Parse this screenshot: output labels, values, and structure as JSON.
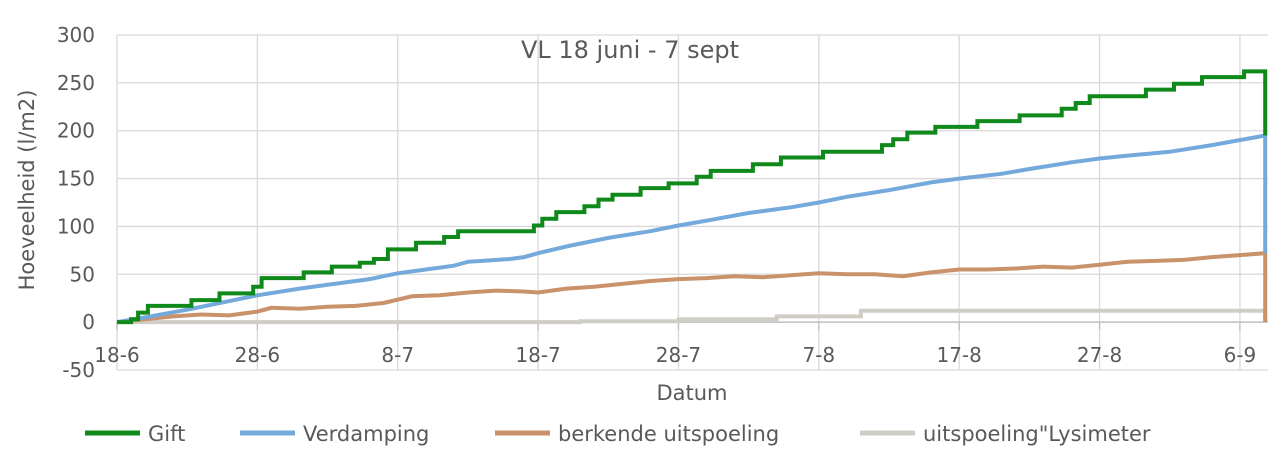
{
  "chart_data": {
    "type": "line",
    "title": "VL 18 juni - 7 sept",
    "xlabel": "Datum",
    "ylabel": "Hoeveelheid (l/m2)",
    "ylim": [
      -50,
      300
    ],
    "yticks": [
      -50,
      0,
      50,
      100,
      150,
      200,
      250,
      300
    ],
    "xlim_days": [
      0,
      82
    ],
    "xticks": [
      {
        "label": "18-6",
        "day": 0
      },
      {
        "label": "28-6",
        "day": 10
      },
      {
        "label": "8-7",
        "day": 20
      },
      {
        "label": "18-7",
        "day": 30
      },
      {
        "label": "28-7",
        "day": 40
      },
      {
        "label": "7-8",
        "day": 50
      },
      {
        "label": "17-8",
        "day": 60
      },
      {
        "label": "27-8",
        "day": 70
      },
      {
        "label": "6-9",
        "day": 80
      }
    ],
    "grid": true,
    "legend_position": "bottom",
    "series": [
      {
        "name": "Gift",
        "color": "#0f8a1a",
        "step": true,
        "points": [
          [
            0,
            0
          ],
          [
            1,
            3
          ],
          [
            1.5,
            10
          ],
          [
            2.2,
            17
          ],
          [
            5.3,
            23
          ],
          [
            7.3,
            30
          ],
          [
            9.7,
            37
          ],
          [
            10.3,
            46
          ],
          [
            13.3,
            52
          ],
          [
            15.3,
            58
          ],
          [
            17.3,
            62
          ],
          [
            18.3,
            66
          ],
          [
            19.3,
            76
          ],
          [
            21.3,
            83
          ],
          [
            23.3,
            89
          ],
          [
            24.3,
            95
          ],
          [
            29.7,
            101
          ],
          [
            30.3,
            108
          ],
          [
            31.3,
            115
          ],
          [
            33.3,
            121
          ],
          [
            34.3,
            128
          ],
          [
            35.3,
            133
          ],
          [
            37.3,
            140
          ],
          [
            39.3,
            145
          ],
          [
            41.3,
            152
          ],
          [
            42.3,
            158
          ],
          [
            45.3,
            165
          ],
          [
            47.3,
            172
          ],
          [
            50.3,
            178
          ],
          [
            54.5,
            185
          ],
          [
            55.3,
            191
          ],
          [
            56.3,
            198
          ],
          [
            58.3,
            204
          ],
          [
            61.3,
            210
          ],
          [
            64.3,
            216
          ],
          [
            67.3,
            223
          ],
          [
            68.3,
            229
          ],
          [
            69.3,
            236
          ],
          [
            73.3,
            243
          ],
          [
            75.3,
            249
          ],
          [
            77.3,
            256
          ],
          [
            80.3,
            262
          ],
          [
            81.8,
            262
          ],
          [
            81.8,
            195
          ]
        ]
      },
      {
        "name": "Verdamping",
        "color": "#74a9dc",
        "step": false,
        "points": [
          [
            0,
            0
          ],
          [
            2,
            5
          ],
          [
            5,
            13
          ],
          [
            8,
            22
          ],
          [
            10,
            28
          ],
          [
            13,
            35
          ],
          [
            16,
            41
          ],
          [
            18,
            45
          ],
          [
            20,
            51
          ],
          [
            22,
            55
          ],
          [
            24,
            59
          ],
          [
            25,
            63
          ],
          [
            28,
            66
          ],
          [
            29,
            68
          ],
          [
            30,
            72
          ],
          [
            32,
            79
          ],
          [
            35,
            88
          ],
          [
            38,
            95
          ],
          [
            40,
            101
          ],
          [
            42,
            106
          ],
          [
            45,
            114
          ],
          [
            48,
            120
          ],
          [
            50,
            125
          ],
          [
            52,
            131
          ],
          [
            55,
            138
          ],
          [
            58,
            146
          ],
          [
            60,
            150
          ],
          [
            63,
            155
          ],
          [
            65,
            160
          ],
          [
            68,
            167
          ],
          [
            70,
            171
          ],
          [
            72,
            174
          ],
          [
            75,
            178
          ],
          [
            78,
            185
          ],
          [
            81.8,
            195
          ],
          [
            81.8,
            72
          ]
        ]
      },
      {
        "name": "berkende uitspoeling",
        "color": "#c9926a",
        "step": false,
        "points": [
          [
            0,
            0
          ],
          [
            2,
            3
          ],
          [
            4,
            6
          ],
          [
            6,
            8
          ],
          [
            8,
            7
          ],
          [
            10,
            11
          ],
          [
            11,
            15
          ],
          [
            13,
            14
          ],
          [
            15,
            16
          ],
          [
            17,
            17
          ],
          [
            19,
            20
          ],
          [
            21,
            27
          ],
          [
            23,
            28
          ],
          [
            25,
            31
          ],
          [
            27,
            33
          ],
          [
            29,
            32
          ],
          [
            30,
            31
          ],
          [
            32,
            35
          ],
          [
            34,
            37
          ],
          [
            36,
            40
          ],
          [
            38,
            43
          ],
          [
            40,
            45
          ],
          [
            42,
            46
          ],
          [
            44,
            48
          ],
          [
            46,
            47
          ],
          [
            48,
            49
          ],
          [
            50,
            51
          ],
          [
            52,
            50
          ],
          [
            54,
            50
          ],
          [
            56,
            48
          ],
          [
            58,
            52
          ],
          [
            60,
            55
          ],
          [
            62,
            55
          ],
          [
            64,
            56
          ],
          [
            66,
            58
          ],
          [
            68,
            57
          ],
          [
            70,
            60
          ],
          [
            72,
            63
          ],
          [
            74,
            64
          ],
          [
            76,
            65
          ],
          [
            78,
            68
          ],
          [
            80,
            70
          ],
          [
            81.8,
            72
          ],
          [
            81.8,
            0
          ]
        ]
      },
      {
        "name": "uitspoeling\"Lysimeter",
        "color": "#d0cdc4",
        "step": true,
        "points": [
          [
            0,
            0
          ],
          [
            33,
            1
          ],
          [
            40,
            3
          ],
          [
            47,
            6
          ],
          [
            53,
            12
          ],
          [
            81.8,
            12
          ],
          [
            81.8,
            0
          ]
        ]
      }
    ]
  }
}
